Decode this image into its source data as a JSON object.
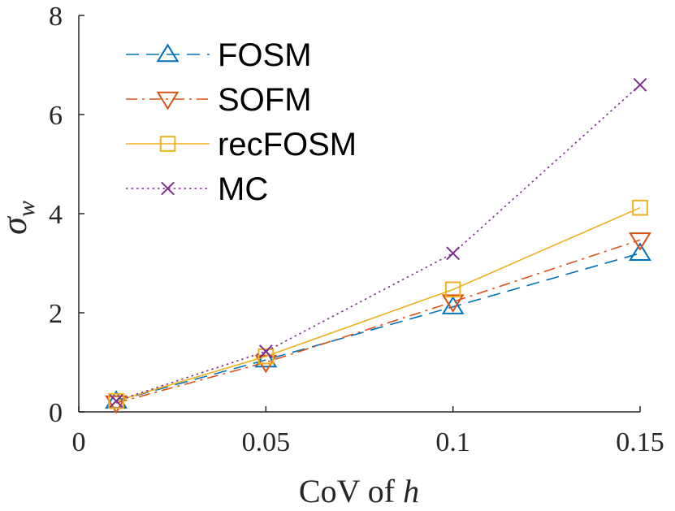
{
  "chart_data": {
    "type": "line",
    "title": "",
    "xlabel": "CoV of h",
    "ylabel": "σw",
    "xlim": [
      0,
      0.15
    ],
    "ylim": [
      0,
      8
    ],
    "xticks": [
      0,
      0.05,
      0.1,
      0.15
    ],
    "xtick_labels": [
      "0",
      "0.05",
      "0.1",
      "0.15"
    ],
    "yticks": [
      0,
      2,
      4,
      6,
      8
    ],
    "ytick_labels": [
      "0",
      "2",
      "4",
      "6",
      "8"
    ],
    "grid": false,
    "legend_position": "top-left",
    "x": [
      0.01,
      0.05,
      0.1,
      0.15
    ],
    "series": [
      {
        "name": "FOSM",
        "values": [
          0.22,
          1.05,
          2.12,
          3.2
        ],
        "color": "#0072BD",
        "marker": "triangle-up",
        "dash": "dashed"
      },
      {
        "name": "SOFM",
        "values": [
          0.18,
          1.0,
          2.22,
          3.47
        ],
        "color": "#D95319",
        "marker": "triangle-down",
        "dash": "dashdot"
      },
      {
        "name": "recFOSM",
        "values": [
          0.22,
          1.12,
          2.47,
          4.12
        ],
        "color": "#EDB120",
        "marker": "square",
        "dash": "solid"
      },
      {
        "name": "MC",
        "values": [
          0.22,
          1.22,
          3.2,
          6.6
        ],
        "color": "#7E2F8E",
        "marker": "x",
        "dash": "dotted"
      }
    ]
  }
}
